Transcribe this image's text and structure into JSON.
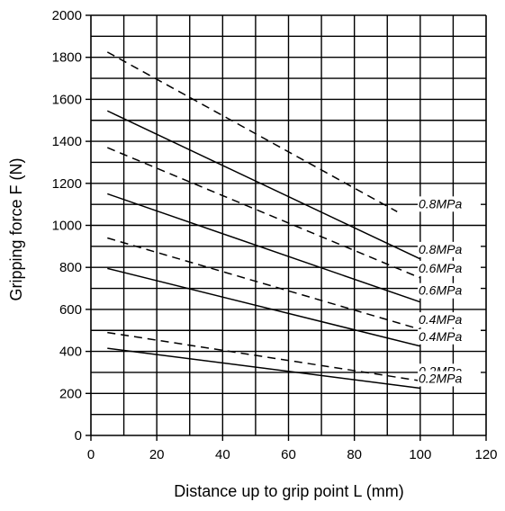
{
  "chart_data": {
    "type": "line",
    "title": "",
    "xlabel": "Distance up to grip point L (mm)",
    "ylabel": "Gripping force F (N)",
    "xlim": [
      0,
      120
    ],
    "ylim": [
      0,
      2000
    ],
    "x_ticks": [
      0,
      20,
      40,
      60,
      80,
      100,
      120
    ],
    "y_ticks": [
      0,
      200,
      400,
      600,
      800,
      1000,
      1200,
      1400,
      1600,
      1800,
      2000
    ],
    "grid": true,
    "series": [
      {
        "name": "0.8MPa",
        "style": "dashed",
        "x": [
          5,
          93
        ],
        "y": [
          1825,
          1065
        ]
      },
      {
        "name": "0.8MPa",
        "style": "solid",
        "x": [
          5,
          100
        ],
        "y": [
          1545,
          840
        ]
      },
      {
        "name": "0.6MPa",
        "style": "dashed",
        "x": [
          5,
          100
        ],
        "y": [
          1370,
          750
        ]
      },
      {
        "name": "0.6MPa",
        "style": "solid",
        "x": [
          5,
          100
        ],
        "y": [
          1150,
          635
        ]
      },
      {
        "name": "0.4MPa",
        "style": "dashed",
        "x": [
          5,
          100
        ],
        "y": [
          940,
          505
        ]
      },
      {
        "name": "0.4MPa",
        "style": "solid",
        "x": [
          5,
          100
        ],
        "y": [
          795,
          425
        ]
      },
      {
        "name": "0.2MPa",
        "style": "dashed",
        "x": [
          5,
          100
        ],
        "y": [
          490,
          260
        ]
      },
      {
        "name": "0.2MPa",
        "style": "solid",
        "x": [
          5,
          100
        ],
        "y": [
          415,
          225
        ]
      }
    ]
  }
}
